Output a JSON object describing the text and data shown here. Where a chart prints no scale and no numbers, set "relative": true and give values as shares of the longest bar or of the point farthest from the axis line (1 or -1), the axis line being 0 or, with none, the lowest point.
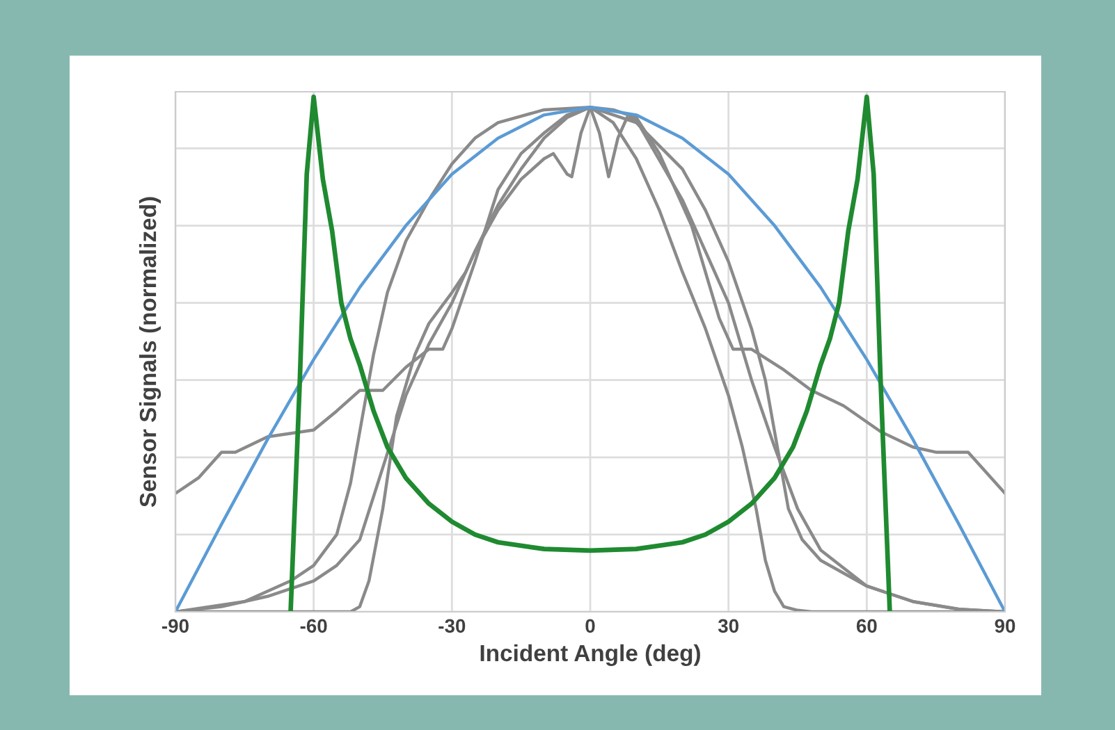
{
  "chart_data": {
    "type": "line",
    "xlabel": "Incident Angle (deg)",
    "ylabel": "Sensor Signals (normalized)",
    "relative": true,
    "xlim": [
      -90,
      90
    ],
    "xticks": [
      -90,
      -60,
      -30,
      0,
      30,
      60,
      90
    ],
    "grid": true,
    "tick_labels": "x",
    "legend": false,
    "series": [
      {
        "color": "#8a8a8a",
        "x": [
          -90,
          -85,
          -80,
          -77,
          -70,
          -60,
          -55,
          -50,
          -45,
          -40,
          -35,
          -32,
          -30,
          -25,
          -20,
          -15,
          -10,
          -5,
          0,
          5,
          10,
          15,
          22,
          28,
          31,
          35,
          42,
          48,
          55,
          63,
          70,
          75,
          82,
          90
        ],
        "values": [
          0.23,
          0.26,
          0.31,
          0.31,
          0.34,
          0.353,
          0.39,
          0.43,
          0.43,
          0.475,
          0.51,
          0.51,
          0.55,
          0.68,
          0.82,
          0.89,
          0.93,
          0.965,
          0.98,
          0.975,
          0.96,
          0.89,
          0.75,
          0.57,
          0.51,
          0.51,
          0.47,
          0.43,
          0.4,
          0.35,
          0.32,
          0.31,
          0.31,
          0.23
        ]
      },
      {
        "color": "#8a8a8a",
        "x": [
          -90,
          -75,
          -65,
          -60,
          -55,
          -52,
          -50,
          -47,
          -44,
          -40,
          -35,
          -30,
          -25,
          -20,
          -10,
          0,
          10,
          20,
          25,
          30,
          35,
          38,
          40,
          43,
          46,
          50,
          60,
          70,
          80,
          90
        ],
        "values": [
          0,
          0.02,
          0.06,
          0.09,
          0.15,
          0.25,
          0.35,
          0.5,
          0.62,
          0.72,
          0.8,
          0.87,
          0.92,
          0.95,
          0.975,
          0.98,
          0.95,
          0.86,
          0.78,
          0.68,
          0.55,
          0.45,
          0.35,
          0.2,
          0.14,
          0.1,
          0.05,
          0.02,
          0.005,
          0
        ]
      },
      {
        "color": "#8a8a8a",
        "x": [
          -90,
          -80,
          -70,
          -60,
          -55,
          -50,
          -45,
          -40,
          -35,
          -30,
          -25,
          -20,
          -15,
          -10,
          -8,
          -5,
          -4,
          -2,
          0,
          2,
          4,
          6,
          8,
          10,
          20,
          30,
          35,
          40,
          45,
          50,
          60,
          70,
          80,
          90
        ],
        "values": [
          0,
          0.01,
          0.03,
          0.06,
          0.09,
          0.14,
          0.28,
          0.42,
          0.52,
          0.6,
          0.7,
          0.78,
          0.84,
          0.88,
          0.89,
          0.85,
          0.845,
          0.93,
          0.98,
          0.93,
          0.845,
          0.92,
          0.96,
          0.955,
          0.8,
          0.6,
          0.45,
          0.32,
          0.2,
          0.12,
          0.05,
          0.02,
          0.005,
          0
        ]
      },
      {
        "color": "#8a8a8a",
        "x": [
          -90,
          -52,
          -50,
          -48,
          -45,
          -42,
          -38,
          -35,
          -30,
          -27,
          -25,
          -20,
          -15,
          -10,
          -5,
          0,
          5,
          10,
          15,
          20,
          25,
          30,
          33,
          36,
          38,
          40,
          42,
          45,
          48,
          90
        ],
        "values": [
          0,
          0,
          0.01,
          0.06,
          0.2,
          0.38,
          0.5,
          0.56,
          0.62,
          0.66,
          0.7,
          0.79,
          0.86,
          0.92,
          0.96,
          0.98,
          0.95,
          0.88,
          0.78,
          0.66,
          0.55,
          0.42,
          0.32,
          0.2,
          0.1,
          0.04,
          0.01,
          0.003,
          0,
          0
        ]
      },
      {
        "color": "#5b9bd5",
        "x": [
          -90,
          -80,
          -70,
          -60,
          -50,
          -40,
          -30,
          -20,
          -10,
          0,
          10,
          20,
          30,
          40,
          50,
          60,
          70,
          80,
          90
        ],
        "values": [
          0,
          0.17,
          0.335,
          0.49,
          0.63,
          0.75,
          0.85,
          0.92,
          0.965,
          0.98,
          0.965,
          0.92,
          0.85,
          0.75,
          0.63,
          0.49,
          0.335,
          0.17,
          0
        ]
      },
      {
        "color": "#1f8a30",
        "x": [
          -65,
          -63,
          -61.5,
          -60,
          -58,
          -56,
          -54,
          -52,
          -50,
          -47,
          -44,
          -40,
          -35,
          -30,
          -25,
          -20,
          -10,
          0,
          10,
          20,
          25,
          30,
          35,
          40,
          44,
          47,
          50,
          52,
          54,
          56,
          58,
          60,
          61.5,
          63,
          65
        ],
        "values": [
          0,
          0.45,
          0.85,
          1,
          0.84,
          0.74,
          0.6,
          0.53,
          0.48,
          0.39,
          0.32,
          0.26,
          0.21,
          0.175,
          0.15,
          0.135,
          0.122,
          0.119,
          0.122,
          0.135,
          0.15,
          0.175,
          0.21,
          0.26,
          0.32,
          0.39,
          0.48,
          0.53,
          0.6,
          0.74,
          0.84,
          1,
          0.85,
          0.45,
          0
        ]
      }
    ]
  }
}
